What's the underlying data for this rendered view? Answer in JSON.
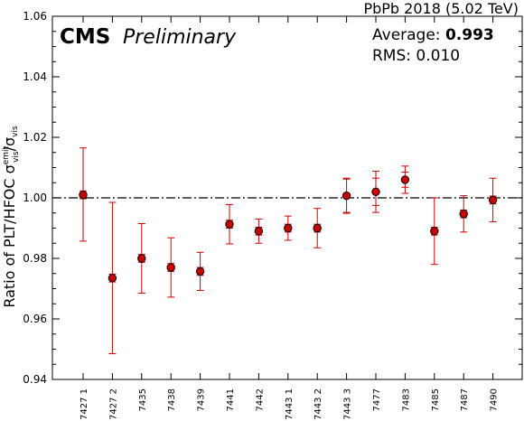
{
  "header": {
    "cms_label": "CMS",
    "preliminary_label": "Preliminary",
    "dataset_label": "PbPb 2018 (5.02 TeV)"
  },
  "stats": {
    "average_label": "Average: ",
    "average_value": "0.993",
    "rms_label": "RMS: 0.010"
  },
  "chart_data": {
    "type": "scatter",
    "categories": [
      "7427 1",
      "7427 2",
      "7435",
      "7438",
      "7439",
      "7441",
      "7442",
      "7443 1",
      "7443 2",
      "7443 3",
      "7477",
      "7483",
      "7485",
      "7487",
      "7490"
    ],
    "values": [
      1.001,
      0.9735,
      0.98,
      0.977,
      0.9757,
      0.9913,
      0.989,
      0.99,
      0.99,
      1.0007,
      1.002,
      1.006,
      0.989,
      0.9947,
      0.9993
    ],
    "err_high": [
      0.0155,
      0.025,
      0.0115,
      0.0098,
      0.0063,
      0.0065,
      0.004,
      0.004,
      0.0065,
      0.0058,
      0.0068,
      0.0045,
      0.011,
      0.006,
      0.0072
    ],
    "err_low": [
      0.0153,
      0.025,
      0.0115,
      0.0098,
      0.0063,
      0.0065,
      0.004,
      0.004,
      0.0065,
      0.0058,
      0.0068,
      0.0045,
      0.011,
      0.006,
      0.0072
    ],
    "sys_high": [
      0.0013,
      0.0013,
      0.0013,
      0.0013,
      0.0013,
      0.0013,
      0.0013,
      0.0013,
      0.0013,
      0.0055,
      0.0045,
      0.0025,
      0.0013,
      0.0013,
      0.0013
    ],
    "ylabel": "Ratio of PLT/HFOC σ",
    "ylabel_sub1": "emit",
    "ylabel_sub2": "vis",
    "ylabel_tail": "/σ",
    "ylabel_sub3": "vis",
    "ylim": [
      0.94,
      1.06
    ],
    "yticks": [
      "0.94",
      "0.96",
      "0.98",
      "1.00",
      "1.02",
      "1.04",
      "1.06"
    ],
    "reference_line": 1.0,
    "grid": false,
    "marker_color": "#cc0000",
    "errorbar_color": "#cc0000"
  }
}
